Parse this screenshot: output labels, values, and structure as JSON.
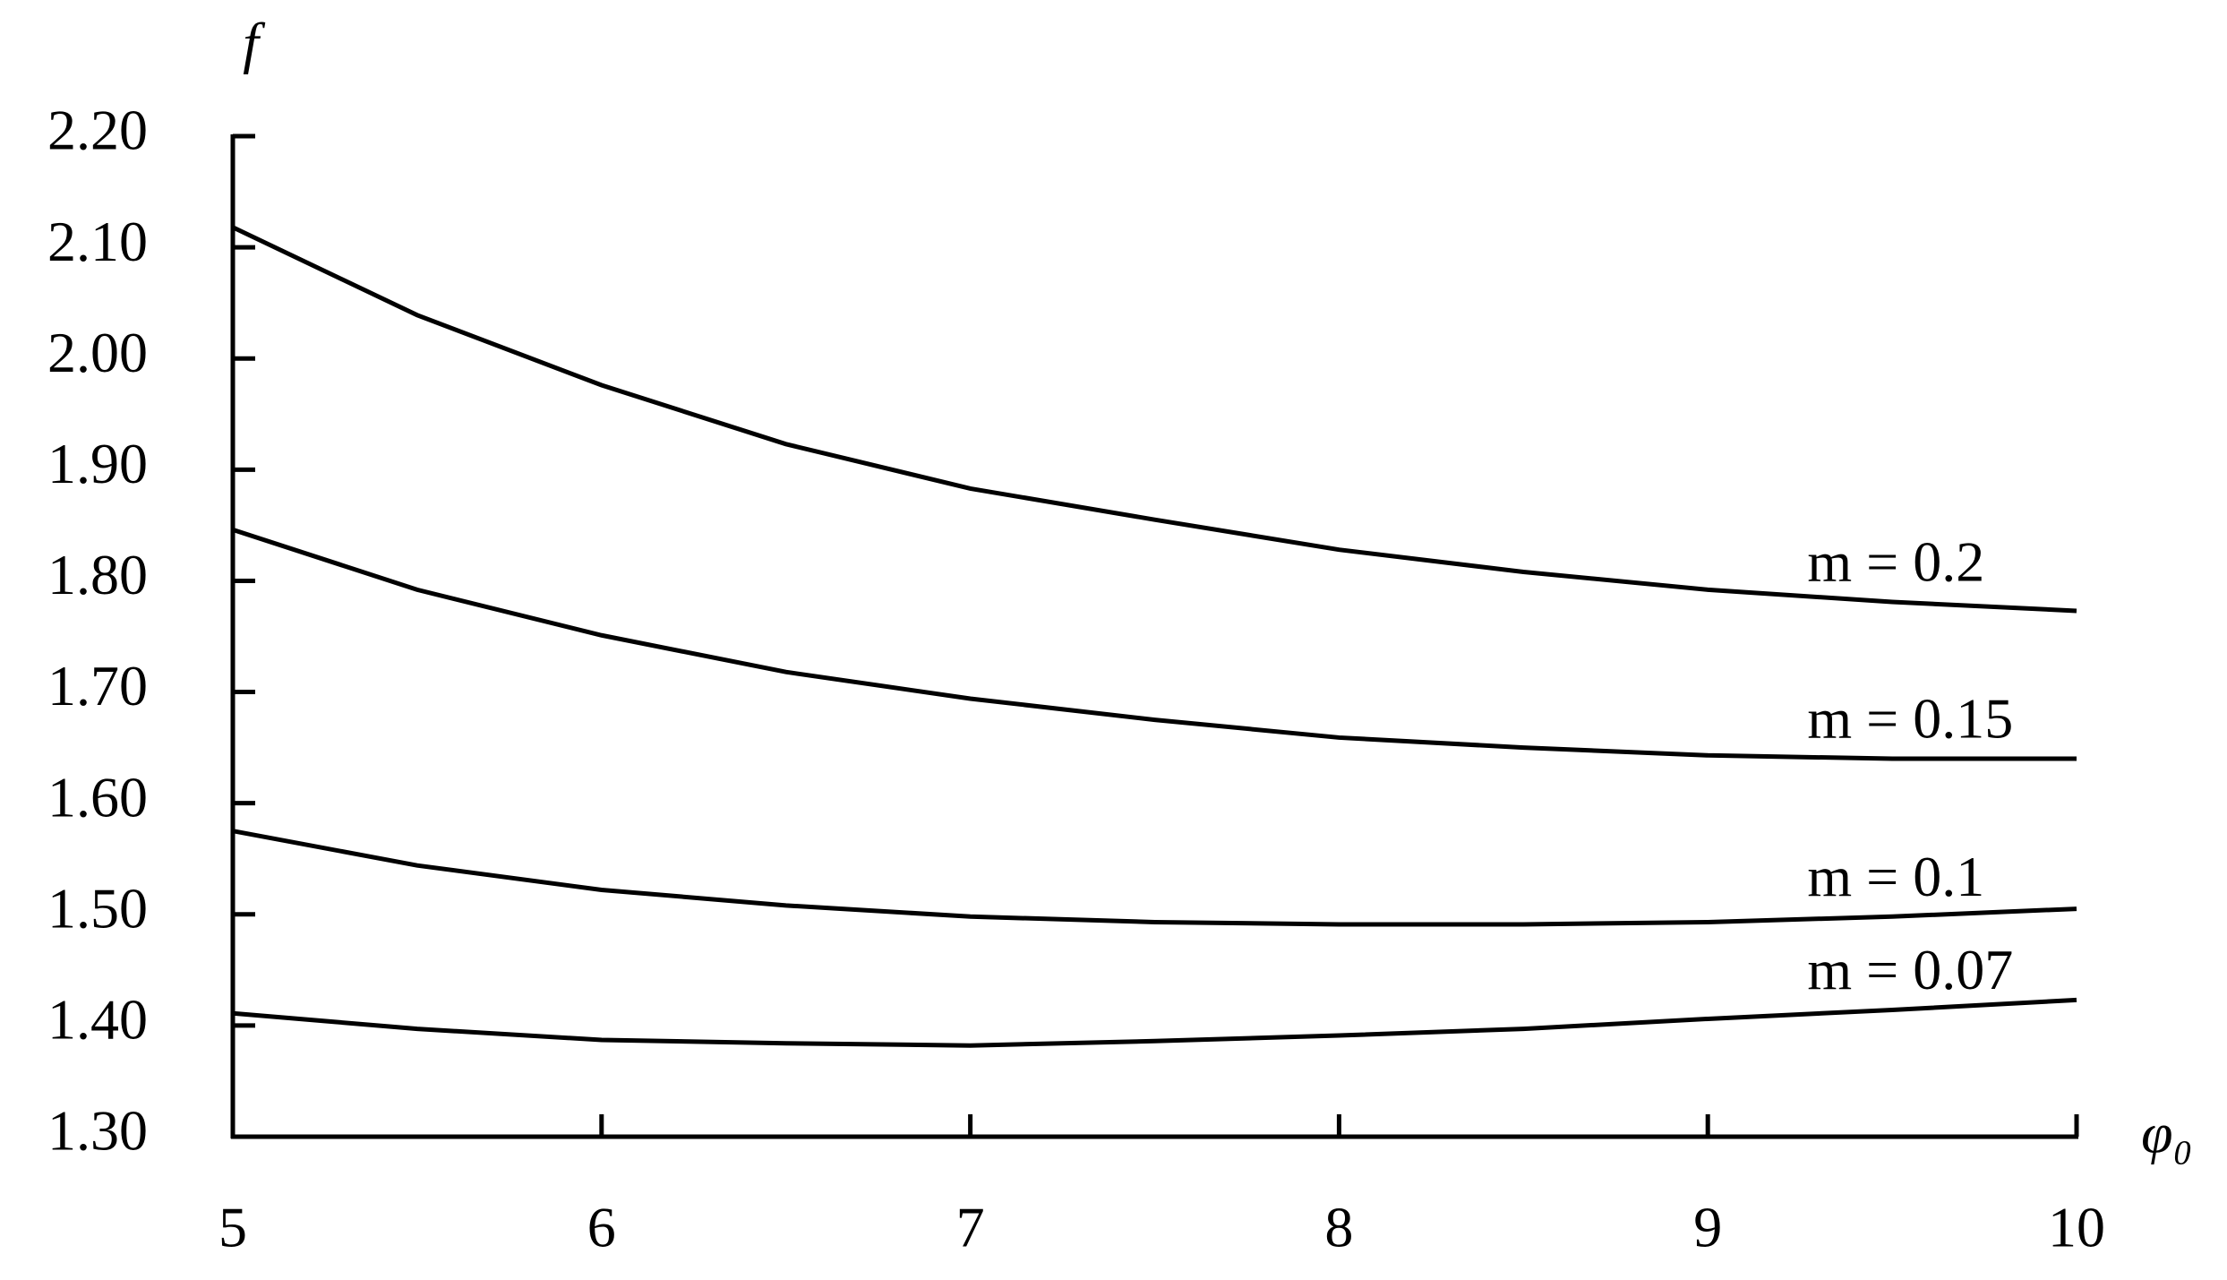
{
  "chart_data": {
    "type": "line",
    "y_label": "f",
    "x_label": "φ₀",
    "x": [
      5,
      5.5,
      6,
      6.5,
      7,
      7.5,
      8,
      8.5,
      9,
      9.5,
      10
    ],
    "series": [
      {
        "name": "m = 0.2",
        "color": "#000000",
        "values": [
          2.118,
          2.039,
          1.976,
          1.923,
          1.883,
          1.855,
          1.828,
          1.808,
          1.792,
          1.781,
          1.773
        ]
      },
      {
        "name": "m = 0.15",
        "color": "#000000",
        "values": [
          1.846,
          1.792,
          1.751,
          1.718,
          1.694,
          1.675,
          1.659,
          1.65,
          1.643,
          1.64,
          1.64
        ]
      },
      {
        "name": "m = 0.1",
        "color": "#000000",
        "values": [
          1.575,
          1.544,
          1.522,
          1.508,
          1.498,
          1.493,
          1.491,
          1.491,
          1.493,
          1.498,
          1.505
        ]
      },
      {
        "name": "m = 0.07",
        "color": "#000000",
        "values": [
          1.411,
          1.397,
          1.387,
          1.384,
          1.382,
          1.386,
          1.391,
          1.397,
          1.406,
          1.414,
          1.423
        ]
      }
    ],
    "xlim": [
      5,
      10
    ],
    "xticks": [
      5,
      6,
      7,
      8,
      9,
      10
    ],
    "ylim": [
      1.3,
      2.2
    ],
    "yticks": [
      {
        "value": 1.3,
        "label": "1.30"
      },
      {
        "value": 1.4,
        "label": "1.40"
      },
      {
        "value": 1.5,
        "label": "1.50"
      },
      {
        "value": 1.6,
        "label": "1.60"
      },
      {
        "value": 1.7,
        "label": "1.70"
      },
      {
        "value": 1.8,
        "label": "1.80"
      },
      {
        "value": 1.9,
        "label": "1.90"
      },
      {
        "value": 2.0,
        "label": "2.00"
      },
      {
        "value": 2.1,
        "label": "2.10"
      },
      {
        "value": 2.2,
        "label": "2.20"
      }
    ],
    "grid": false
  }
}
